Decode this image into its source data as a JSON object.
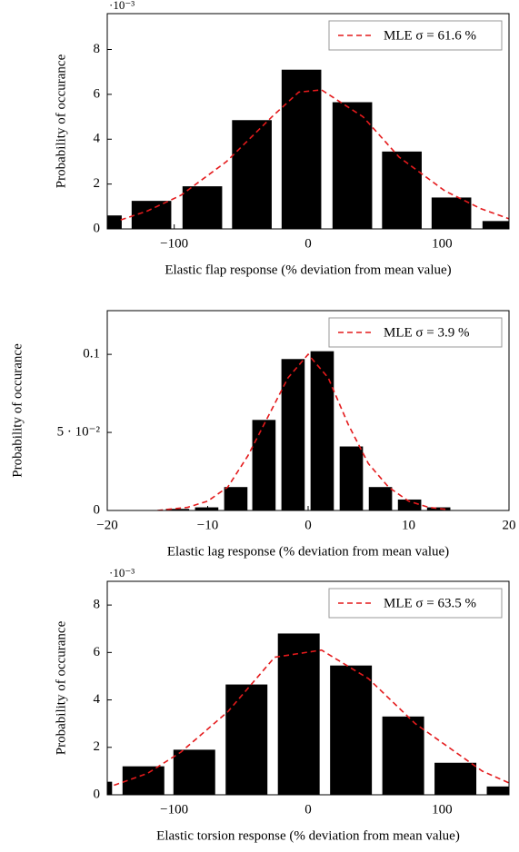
{
  "chart_data": [
    {
      "type": "bar",
      "xlabel": "Elastic flap response (% deviation from mean value)",
      "ylabel": "Probability of occurance",
      "exponent_label": "·10⁻³",
      "x": [
        -154,
        -117,
        -79,
        -42,
        -5,
        33,
        70,
        107,
        145
      ],
      "values": [
        0.6,
        1.25,
        1.9,
        4.85,
        7.1,
        5.65,
        3.45,
        1.4,
        0.35
      ],
      "color": "#000000",
      "fit": {
        "name": "MLE σ = 61.6 %",
        "color": "#e41a1c",
        "x": [
          -140,
          -120,
          -95,
          -61,
          -27,
          -7,
          10,
          41,
          68,
          102,
          129,
          150
        ],
        "values": [
          0.4,
          0.8,
          1.5,
          3.0,
          5.0,
          6.1,
          6.2,
          5.0,
          3.2,
          1.7,
          0.9,
          0.45
        ]
      },
      "xlim": [
        -150,
        150
      ],
      "ylim": [
        0,
        9.6
      ],
      "xticks": [
        {
          "value": -100,
          "label": "−100"
        },
        0,
        100
      ],
      "yticks": [
        0,
        2,
        4,
        6,
        8
      ],
      "legend": "upper right"
    },
    {
      "type": "bar",
      "xlabel": "Elastic lag response (% deviation from mean value)",
      "ylabel": "Probability of occurance",
      "x": [
        -13,
        -10.1,
        -7.2,
        -4.4,
        -1.5,
        1.4,
        4.3,
        7.2,
        10.1,
        13.0
      ],
      "values": [
        0.001,
        0.002,
        0.015,
        0.058,
        0.097,
        0.102,
        0.041,
        0.015,
        0.007,
        0.002
      ],
      "color": "#000000",
      "fit": {
        "name": "MLE σ = 3.9 %",
        "color": "#e41a1c",
        "x": [
          -15,
          -12,
          -10,
          -8,
          -6,
          -4,
          -2,
          0,
          2,
          4,
          6,
          8,
          10,
          12,
          14
        ],
        "values": [
          0,
          0.002,
          0.006,
          0.015,
          0.035,
          0.06,
          0.085,
          0.1,
          0.085,
          0.055,
          0.03,
          0.015,
          0.006,
          0.002,
          0.0005
        ]
      },
      "xlim": [
        -20,
        20
      ],
      "ylim": [
        0,
        0.128
      ],
      "xticks": [
        {
          "value": -20,
          "label": "−20"
        },
        {
          "value": -10,
          "label": "−10"
        },
        0,
        10,
        20
      ],
      "yticks": [
        0,
        {
          "value": 0.05,
          "label": "5 · 10⁻²"
        },
        0.1
      ],
      "legend": "upper right"
    },
    {
      "type": "bar",
      "xlabel": "Elastic torsion response (% deviation from mean value)",
      "ylabel": "Probability of occurance",
      "exponent_label": "·10⁻³",
      "x": [
        -162,
        -123,
        -85,
        -46,
        -7,
        32,
        71,
        110,
        149
      ],
      "values": [
        0.55,
        1.2,
        1.9,
        4.65,
        6.8,
        5.45,
        3.3,
        1.35,
        0.35
      ],
      "color": "#000000",
      "fit": {
        "name": "MLE σ = 63.5 %",
        "color": "#e41a1c",
        "x": [
          -145,
          -120,
          -95,
          -60,
          -25,
          10,
          45,
          80,
          105,
          130,
          150
        ],
        "values": [
          0.4,
          0.9,
          1.8,
          3.5,
          5.8,
          6.1,
          4.9,
          3.0,
          2.0,
          1.0,
          0.5
        ]
      },
      "xlim": [
        -150,
        150
      ],
      "ylim": [
        0,
        9.0
      ],
      "xticks": [
        {
          "value": -100,
          "label": "−100"
        },
        0,
        100
      ],
      "yticks": [
        0,
        2,
        4,
        6,
        8
      ],
      "legend": "upper right"
    }
  ]
}
